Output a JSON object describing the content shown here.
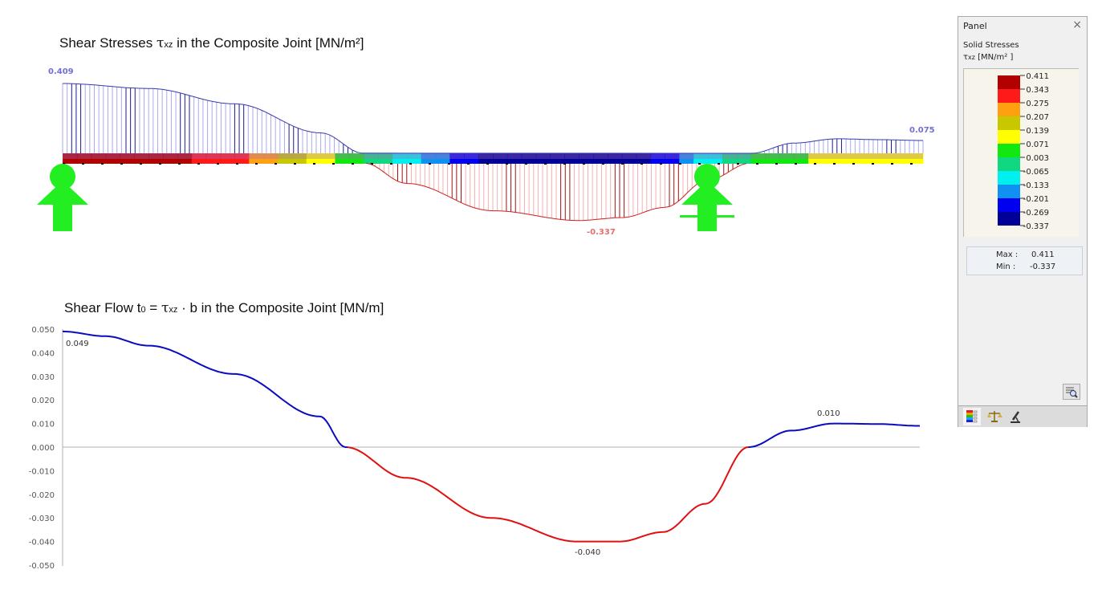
{
  "upper_chart": {
    "title_pre": "Shear Stresses ",
    "title_tau": "τ",
    "title_sub": "xz",
    "title_post": " in the Composite Joint  [MN/m²]",
    "max_label": "0.409",
    "min_label": "-0.337",
    "end_label": "0.075",
    "positive_color": "#3333aa",
    "negative_color": "#cc2222"
  },
  "lower_chart": {
    "title_pre": "Shear Flow t",
    "title_sub0": "0",
    "title_mid": " = ",
    "title_tau": "τ",
    "title_sub": "xz",
    "title_post": " · b  in the Composite Joint [MN/m]",
    "labels": {
      "max": "0.049",
      "min": "-0.040",
      "local_max": "0.010"
    }
  },
  "chart_data": [
    {
      "type": "area",
      "title": "Shear Stresses τxz in the Composite Joint [MN/m²]",
      "xlabel": "",
      "ylabel": "τxz [MN/m²]",
      "annotations": [
        "0.409",
        "-0.337",
        "0.075"
      ],
      "x": [
        0.0,
        0.1,
        0.2,
        0.3,
        0.35,
        0.4,
        0.5,
        0.6,
        0.65,
        0.7,
        0.75,
        0.8,
        0.85,
        0.9,
        0.95,
        1.0
      ],
      "values": [
        0.409,
        0.38,
        0.29,
        0.12,
        0.0,
        -0.12,
        -0.28,
        -0.337,
        -0.32,
        -0.26,
        -0.1,
        0.0,
        0.06,
        0.085,
        0.08,
        0.075
      ],
      "supports": [
        0.0,
        0.75
      ]
    },
    {
      "type": "line",
      "title": "Shear Flow t0 = τxz · b in the Composite Joint [MN/m]",
      "xlabel": "",
      "ylabel": "MN/m",
      "ylim": [
        -0.05,
        0.05
      ],
      "yticks": [
        "0.050",
        "0.040",
        "0.030",
        "0.020",
        "0.010",
        "0.000",
        "-0.010",
        "-0.020",
        "-0.030",
        "-0.040",
        "-0.050"
      ],
      "annotations": [
        "0.049",
        "-0.040",
        "0.010"
      ],
      "x": [
        0.0,
        0.05,
        0.1,
        0.2,
        0.3,
        0.33,
        0.4,
        0.5,
        0.6,
        0.65,
        0.7,
        0.75,
        0.8,
        0.85,
        0.9,
        0.95,
        1.0
      ],
      "values": [
        0.049,
        0.047,
        0.043,
        0.031,
        0.013,
        0.0,
        -0.013,
        -0.03,
        -0.04,
        -0.04,
        -0.036,
        -0.024,
        0.0,
        0.007,
        0.01,
        0.0098,
        0.009
      ],
      "series_colors": {
        "positive": "#0b0bc0",
        "negative": "#e01010"
      }
    }
  ],
  "panel": {
    "title": "Panel",
    "close_icon": "×",
    "heading": "Solid Stresses",
    "unit_tau": "τ",
    "unit_sub": "xz",
    "unit_rest": " [MN/m² ]",
    "legend": [
      {
        "value": "0.411",
        "color": "#b00000"
      },
      {
        "value": "0.343",
        "color": "#ff1a1a"
      },
      {
        "value": "0.275",
        "color": "#ffa010"
      },
      {
        "value": "0.207",
        "color": "#c8c800"
      },
      {
        "value": "0.139",
        "color": "#ffff00"
      },
      {
        "value": "0.071",
        "color": "#10e810"
      },
      {
        "value": "0.003",
        "color": "#10d880"
      },
      {
        "value": "-0.065",
        "color": "#00f0f0"
      },
      {
        "value": "-0.133",
        "color": "#1090f0"
      },
      {
        "value": "-0.201",
        "color": "#0000f0"
      },
      {
        "value": "-0.269",
        "color": "#000098"
      },
      {
        "value": "-0.337",
        "color": ""
      }
    ],
    "max_label": "Max :",
    "max_value": "0.411",
    "min_label": "Min  :",
    "min_value": "-0.337",
    "tabs": [
      "color-scale-tab",
      "balance-tab",
      "microscope-tab"
    ]
  }
}
